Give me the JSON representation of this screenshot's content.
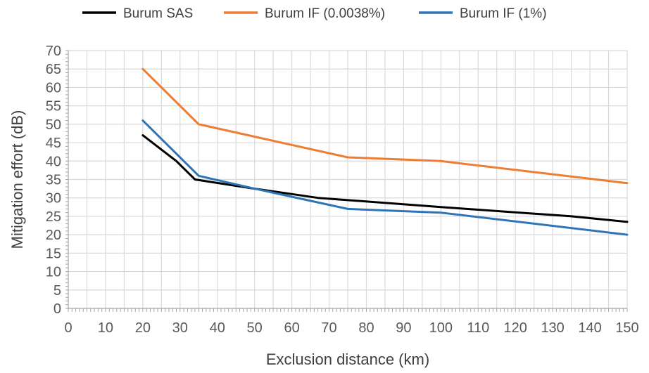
{
  "chart_data": {
    "type": "line",
    "xlabel": "Exclusion distance (km)",
    "ylabel": "Mitigation effort (dB)",
    "xlim": [
      0,
      150
    ],
    "ylim": [
      0,
      70
    ],
    "x_ticks": [
      0,
      10,
      20,
      30,
      40,
      50,
      60,
      70,
      80,
      90,
      100,
      110,
      120,
      130,
      140,
      150
    ],
    "y_ticks": [
      0,
      5,
      10,
      15,
      20,
      25,
      30,
      35,
      40,
      45,
      50,
      55,
      60,
      65,
      70
    ],
    "grid": true,
    "legend_position": "top",
    "series": [
      {
        "name": "Burum SAS",
        "color": "#000000",
        "points": [
          [
            20,
            47
          ],
          [
            29,
            40
          ],
          [
            34,
            35
          ],
          [
            50,
            32.5
          ],
          [
            67,
            30
          ],
          [
            100,
            27.5
          ],
          [
            135,
            25
          ],
          [
            150,
            23.5
          ]
        ]
      },
      {
        "name": "Burum IF (0.0038%)",
        "color": "#ED7D31",
        "points": [
          [
            20,
            65
          ],
          [
            35,
            50
          ],
          [
            75,
            41
          ],
          [
            100,
            40
          ],
          [
            150,
            34
          ]
        ]
      },
      {
        "name": "Burum IF (1%)",
        "color": "#2E75B6",
        "points": [
          [
            20,
            51
          ],
          [
            35,
            36
          ],
          [
            50,
            32.5
          ],
          [
            75,
            27
          ],
          [
            100,
            26
          ],
          [
            150,
            20
          ]
        ]
      }
    ]
  }
}
